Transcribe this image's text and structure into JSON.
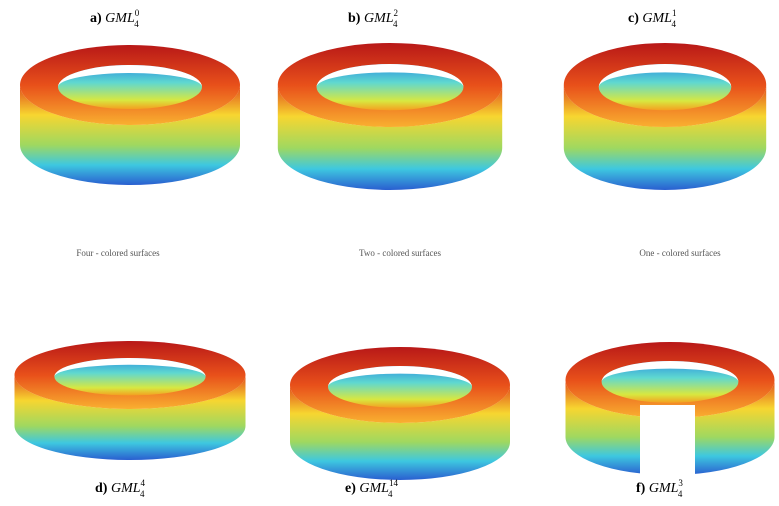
{
  "panels": [
    {
      "label": "a)",
      "name": "GML",
      "sub": "4",
      "sup": "0"
    },
    {
      "label": "b)",
      "name": "GML",
      "sub": "4",
      "sup": "2"
    },
    {
      "label": "c)",
      "name": "GML",
      "sub": "4",
      "sup": "1"
    },
    {
      "label": "d)",
      "name": "GML",
      "sub": "4",
      "sup": "4"
    },
    {
      "label": "e)",
      "name": "GML",
      "sub": "4",
      "sup": "14"
    },
    {
      "label": "f)",
      "name": "GML",
      "sub": "4",
      "sup": "3"
    }
  ],
  "captions": [
    "Four - colored surfaces",
    "Two - colored surfaces",
    "One - colored surfaces"
  ]
}
